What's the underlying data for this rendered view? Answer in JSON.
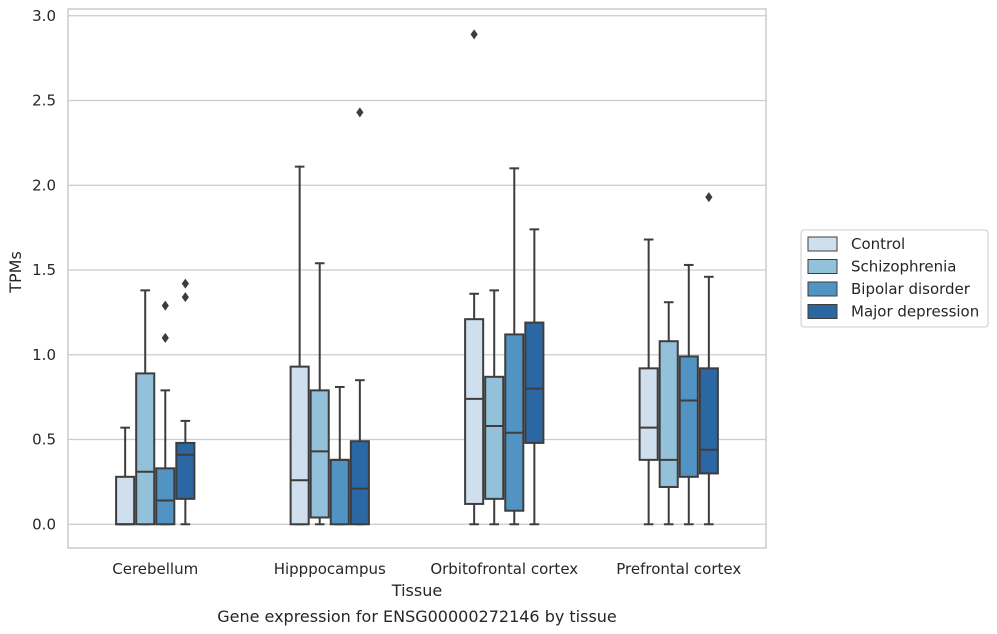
{
  "chart_data": {
    "type": "box",
    "title": "",
    "caption": "Gene expression for ENSG00000272146 by tissue",
    "xlabel": "Tissue",
    "ylabel": "TPMs",
    "ylim": [
      -0.14,
      3.04
    ],
    "yticks": [
      "0.0",
      "0.5",
      "1.0",
      "1.5",
      "2.0",
      "2.5",
      "3.0"
    ],
    "grid": "horizontal",
    "legend_position": "right",
    "categories": [
      "Cerebellum",
      "Hipppocampus",
      "Orbitofrontal cortex",
      "Prefrontal cortex"
    ],
    "series": [
      {
        "name": "Control",
        "color": "#cfdfee",
        "boxes": [
          {
            "whislo": 0.0,
            "q1": 0.0,
            "med": 0.0,
            "q3": 0.28,
            "whishi": 0.57,
            "fliers": []
          },
          {
            "whislo": 0.0,
            "q1": 0.0,
            "med": 0.26,
            "q3": 0.93,
            "whishi": 2.11,
            "fliers": []
          },
          {
            "whislo": 0.0,
            "q1": 0.12,
            "med": 0.74,
            "q3": 1.21,
            "whishi": 1.36,
            "fliers": [
              2.89
            ]
          },
          {
            "whislo": 0.0,
            "q1": 0.38,
            "med": 0.57,
            "q3": 0.92,
            "whishi": 1.68,
            "fliers": []
          }
        ]
      },
      {
        "name": "Schizophrenia",
        "color": "#93c1da",
        "boxes": [
          {
            "whislo": 0.0,
            "q1": 0.0,
            "med": 0.31,
            "q3": 0.89,
            "whishi": 1.38,
            "fliers": []
          },
          {
            "whislo": 0.0,
            "q1": 0.04,
            "med": 0.43,
            "q3": 0.79,
            "whishi": 1.54,
            "fliers": []
          },
          {
            "whislo": 0.0,
            "q1": 0.15,
            "med": 0.58,
            "q3": 0.87,
            "whishi": 1.38,
            "fliers": []
          },
          {
            "whislo": 0.0,
            "q1": 0.22,
            "med": 0.38,
            "q3": 1.08,
            "whishi": 1.31,
            "fliers": []
          }
        ]
      },
      {
        "name": "Bipolar disorder",
        "color": "#5193c3",
        "boxes": [
          {
            "whislo": 0.0,
            "q1": 0.0,
            "med": 0.14,
            "q3": 0.33,
            "whishi": 0.79,
            "fliers": [
              1.1,
              1.29
            ]
          },
          {
            "whislo": 0.0,
            "q1": 0.0,
            "med": 0.38,
            "q3": 0.38,
            "whishi": 0.81,
            "fliers": []
          },
          {
            "whislo": 0.0,
            "q1": 0.08,
            "med": 0.54,
            "q3": 1.12,
            "whishi": 2.1,
            "fliers": []
          },
          {
            "whislo": 0.0,
            "q1": 0.28,
            "med": 0.73,
            "q3": 0.99,
            "whishi": 1.53,
            "fliers": []
          }
        ]
      },
      {
        "name": "Major depression",
        "color": "#2b67a3",
        "boxes": [
          {
            "whislo": 0.0,
            "q1": 0.15,
            "med": 0.41,
            "q3": 0.48,
            "whishi": 0.61,
            "fliers": [
              1.34,
              1.42
            ]
          },
          {
            "whislo": 0.0,
            "q1": 0.0,
            "med": 0.21,
            "q3": 0.49,
            "whishi": 0.85,
            "fliers": [
              2.43
            ]
          },
          {
            "whislo": 0.0,
            "q1": 0.48,
            "med": 0.8,
            "q3": 1.19,
            "whishi": 1.74,
            "fliers": []
          },
          {
            "whislo": 0.0,
            "q1": 0.3,
            "med": 0.44,
            "q3": 0.92,
            "whishi": 1.46,
            "fliers": [
              1.93
            ]
          }
        ]
      }
    ]
  }
}
